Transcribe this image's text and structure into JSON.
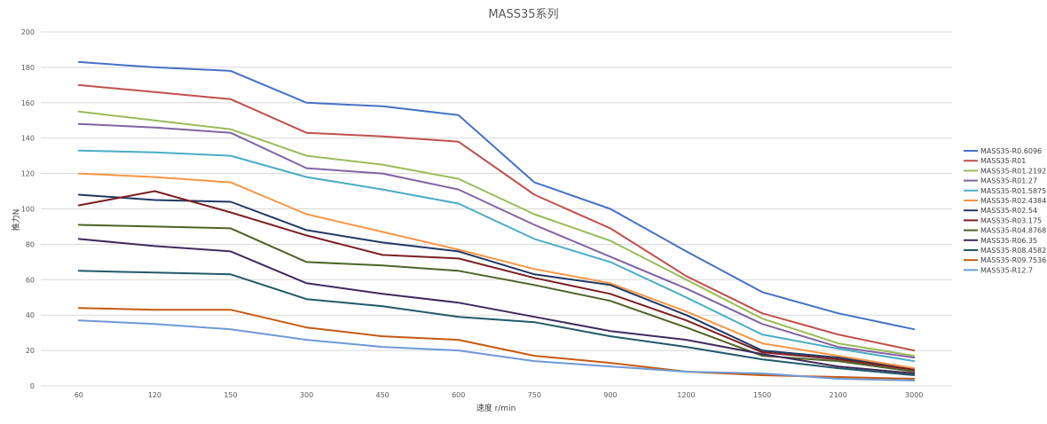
{
  "chart_data": {
    "type": "line",
    "title": "MASS35系列",
    "xlabel": "速度 r/min",
    "ylabel": "推力N",
    "categories": [
      "60",
      "120",
      "150",
      "300",
      "450",
      "600",
      "750",
      "900",
      "1200",
      "1500",
      "2100",
      "3000"
    ],
    "ylim": [
      0,
      200
    ],
    "yticks": [
      0,
      20,
      40,
      60,
      80,
      100,
      120,
      140,
      160,
      180,
      200
    ],
    "grid": true,
    "legend": "right",
    "series": [
      {
        "name": "MASS35-R0.6096",
        "color": "#4472C4",
        "values": [
          183,
          180,
          178,
          160,
          158,
          153,
          115,
          100,
          76,
          53,
          41,
          32
        ]
      },
      {
        "name": "MASS35-R01",
        "color": "#C0504D",
        "values": [
          170,
          166,
          162,
          143,
          141,
          138,
          108,
          89,
          62,
          41,
          29,
          20
        ]
      },
      {
        "name": "MASS35-R01.2192",
        "color": "#9BBB59",
        "values": [
          155,
          150,
          145,
          130,
          125,
          117,
          97,
          82,
          60,
          38,
          24,
          17
        ]
      },
      {
        "name": "MASS35-R01.27",
        "color": "#8064A2",
        "values": [
          148,
          146,
          143,
          123,
          120,
          111,
          91,
          73,
          55,
          35,
          22,
          16
        ]
      },
      {
        "name": "MASS35-R01.5875",
        "color": "#4BACC6",
        "values": [
          133,
          132,
          130,
          118,
          111,
          103,
          83,
          70,
          50,
          29,
          21,
          14
        ]
      },
      {
        "name": "MASS35-R02.4384",
        "color": "#F79646",
        "values": [
          120,
          118,
          115,
          97,
          87,
          77,
          66,
          58,
          42,
          24,
          17,
          10
        ]
      },
      {
        "name": "MASS35-R02.54",
        "color": "#1F3864",
        "values": [
          108,
          105,
          104,
          88,
          81,
          76,
          63,
          57,
          40,
          20,
          16,
          9
        ]
      },
      {
        "name": "MASS35-R03.175",
        "color": "#7B1F22",
        "values": [
          102,
          110,
          98,
          85,
          74,
          72,
          61,
          52,
          37,
          19,
          15,
          9
        ]
      },
      {
        "name": "MASS35-R04.8768",
        "color": "#4F6228",
        "values": [
          91,
          90,
          89,
          70,
          68,
          65,
          57,
          48,
          33,
          17,
          14,
          8
        ]
      },
      {
        "name": "MASS35-R06.35",
        "color": "#3F2A5C",
        "values": [
          83,
          79,
          76,
          58,
          52,
          47,
          39,
          31,
          26,
          18,
          11,
          7
        ]
      },
      {
        "name": "MASS35-R08.4582",
        "color": "#215968",
        "values": [
          65,
          64,
          63,
          49,
          45,
          39,
          36,
          28,
          22,
          15,
          10,
          6
        ]
      },
      {
        "name": "MASS35-R09.7536",
        "color": "#C55A11",
        "values": [
          44,
          43,
          43,
          33,
          28,
          26,
          17,
          13,
          8,
          6,
          5,
          4
        ]
      },
      {
        "name": "MASS35-R12.7",
        "color": "#6F99D6",
        "values": [
          37,
          35,
          32,
          26,
          22,
          20,
          14,
          11,
          8,
          7,
          4,
          3
        ]
      }
    ]
  }
}
